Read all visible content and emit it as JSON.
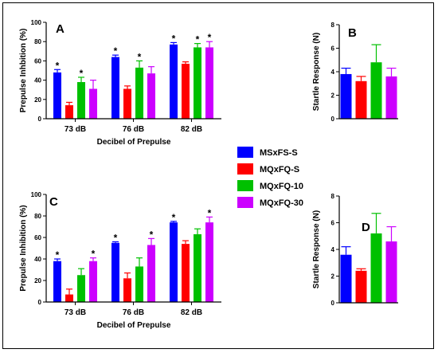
{
  "legend": [
    {
      "name": "MSxFS-S",
      "color": "#0000ff"
    },
    {
      "name": "MQxFQ-S",
      "color": "#ff0000"
    },
    {
      "name": "MQxFQ-10",
      "color": "#00c000"
    },
    {
      "name": "MQxFQ-30",
      "color": "#cc00ff"
    }
  ],
  "chart_data": [
    {
      "type": "bar",
      "panel": "A",
      "categories": [
        "73 dB",
        "76 dB",
        "82 dB"
      ],
      "xlabel": "Decibel of Prepulse",
      "ylabel": "Prepulse Inhbition (%)",
      "ylim": [
        0,
        100
      ],
      "yticks": [
        0,
        20,
        40,
        60,
        80,
        100
      ],
      "series": [
        {
          "name": "MSxFS-S",
          "values": [
            48,
            64,
            77
          ],
          "errors": [
            3,
            2,
            2
          ]
        },
        {
          "name": "MQxFQ-S",
          "values": [
            14,
            31,
            57
          ],
          "errors": [
            3,
            3,
            2
          ]
        },
        {
          "name": "MQxFQ-10",
          "values": [
            38,
            53,
            74
          ],
          "errors": [
            5,
            7,
            4
          ]
        },
        {
          "name": "MQxFQ-30",
          "values": [
            31,
            47,
            74
          ],
          "errors": [
            9,
            7,
            6
          ]
        }
      ],
      "significance": [
        [
          true,
          false,
          true,
          false
        ],
        [
          true,
          false,
          true,
          false
        ],
        [
          true,
          false,
          true,
          true
        ]
      ]
    },
    {
      "type": "bar",
      "panel": "B",
      "categories": [
        ""
      ],
      "ylabel": "Startle Response (N)",
      "ylim": [
        0,
        8
      ],
      "yticks": [
        0,
        2,
        4,
        6,
        8
      ],
      "series": [
        {
          "name": "MSxFS-S",
          "values": [
            3.8
          ],
          "errors": [
            0.5
          ]
        },
        {
          "name": "MQxFQ-S",
          "values": [
            3.2
          ],
          "errors": [
            0.4
          ]
        },
        {
          "name": "MQxFQ-10",
          "values": [
            4.8
          ],
          "errors": [
            1.5
          ]
        },
        {
          "name": "MQxFQ-30",
          "values": [
            3.6
          ],
          "errors": [
            0.7
          ]
        }
      ]
    },
    {
      "type": "bar",
      "panel": "C",
      "categories": [
        "73 dB",
        "76 dB",
        "82 dB"
      ],
      "xlabel": "Decibel of Prepulse",
      "ylabel": "Prepulse Inhibition (%)",
      "ylim": [
        0,
        100
      ],
      "yticks": [
        0,
        20,
        40,
        60,
        80,
        100
      ],
      "series": [
        {
          "name": "MSxFS-S",
          "values": [
            38,
            55,
            74
          ],
          "errors": [
            2,
            1,
            1
          ]
        },
        {
          "name": "MQxFQ-S",
          "values": [
            7,
            22,
            54
          ],
          "errors": [
            5,
            5,
            3
          ]
        },
        {
          "name": "MQxFQ-10",
          "values": [
            25,
            33,
            63
          ],
          "errors": [
            6,
            8,
            5
          ]
        },
        {
          "name": "MQxFQ-30",
          "values": [
            38,
            53,
            74
          ],
          "errors": [
            3,
            6,
            5
          ]
        }
      ],
      "significance": [
        [
          true,
          false,
          false,
          true
        ],
        [
          true,
          false,
          false,
          true
        ],
        [
          true,
          false,
          false,
          true
        ]
      ]
    },
    {
      "type": "bar",
      "panel": "D",
      "categories": [
        ""
      ],
      "ylabel": "Startle Response (N)",
      "ylim": [
        0,
        8
      ],
      "yticks": [
        0,
        2,
        4,
        6,
        8
      ],
      "series": [
        {
          "name": "MSxFS-S",
          "values": [
            3.6
          ],
          "errors": [
            0.6
          ]
        },
        {
          "name": "MQxFQ-S",
          "values": [
            2.4
          ],
          "errors": [
            0.15
          ]
        },
        {
          "name": "MQxFQ-10",
          "values": [
            5.2
          ],
          "errors": [
            1.5
          ]
        },
        {
          "name": "MQxFQ-30",
          "values": [
            4.6
          ],
          "errors": [
            1.1
          ]
        }
      ]
    }
  ]
}
